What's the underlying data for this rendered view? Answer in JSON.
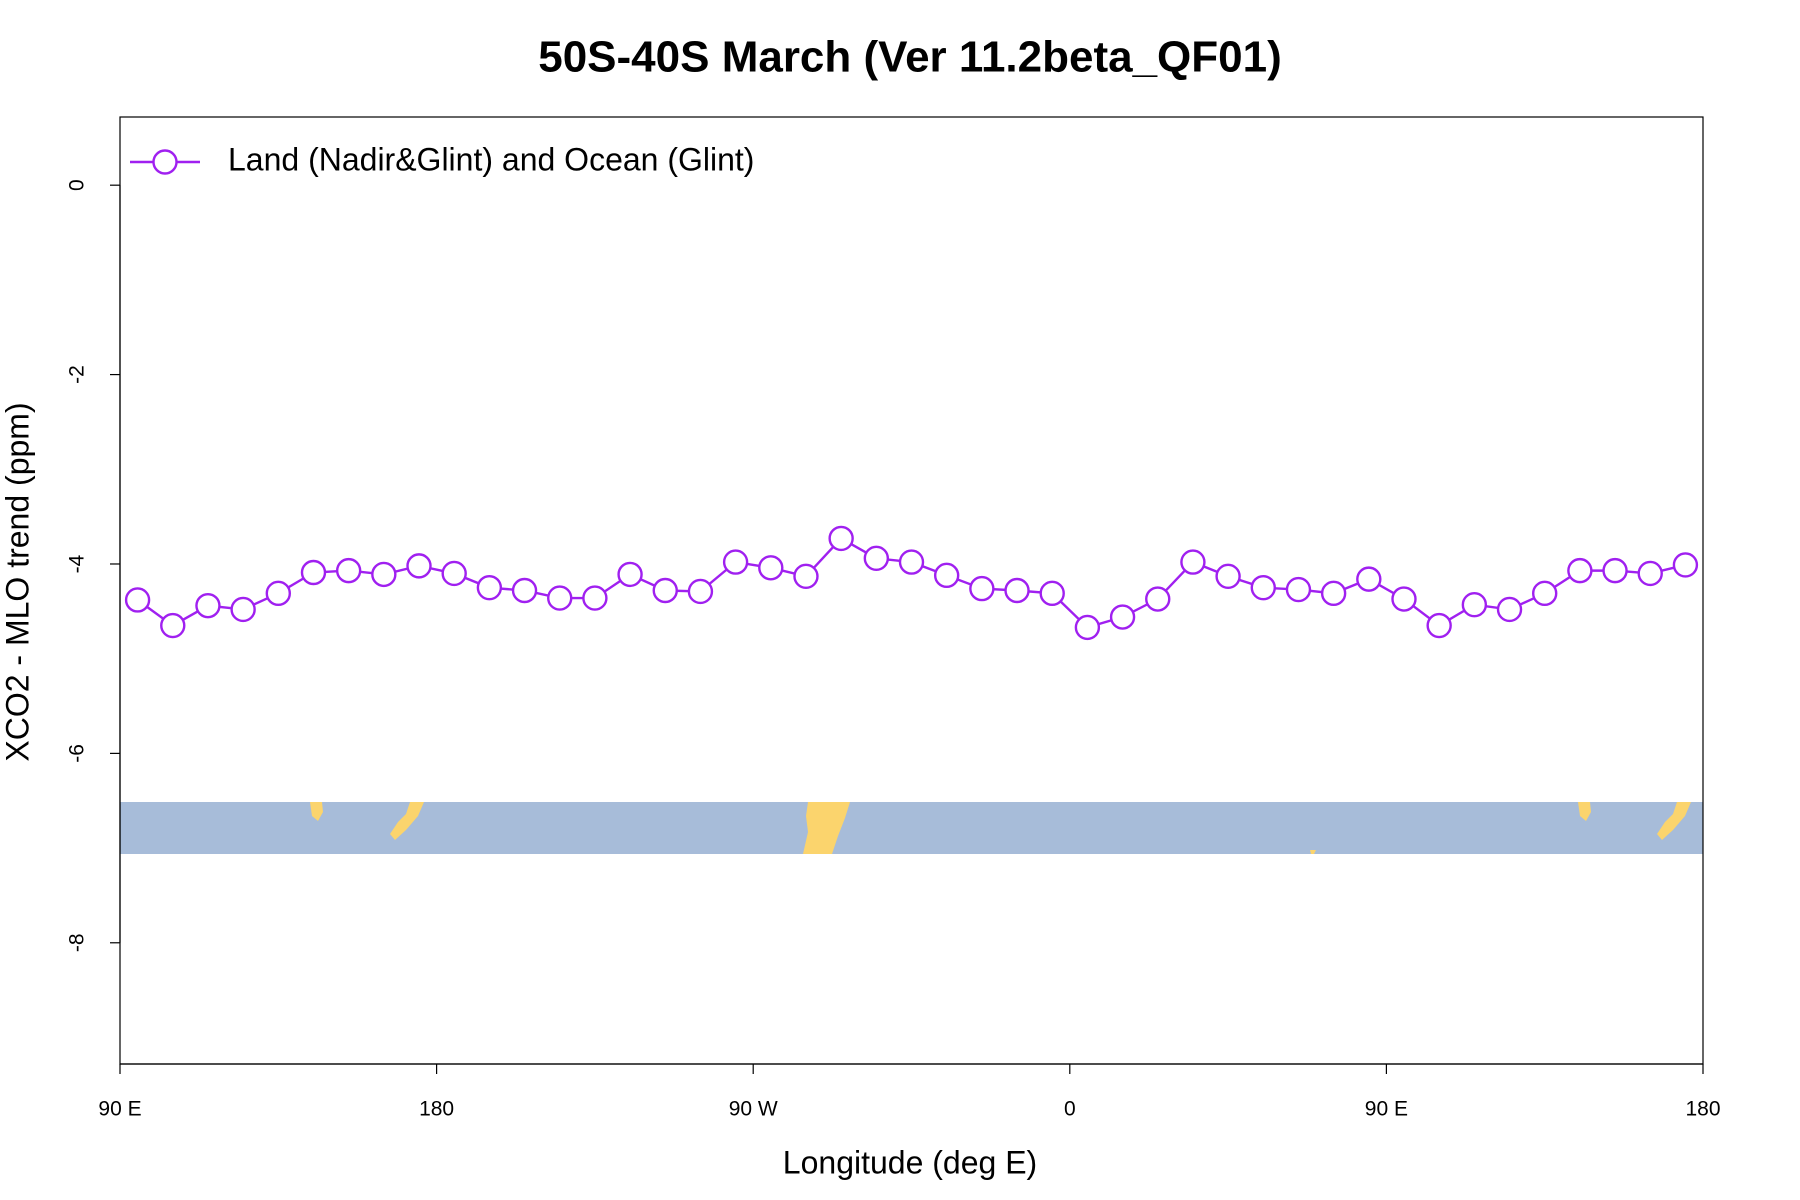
{
  "chart_data": {
    "type": "line",
    "title": "50S-40S March (Ver 11.2beta_QF01)",
    "x_label": "Longitude (deg E)",
    "y_label": "XCO2 - MLO trend (ppm)",
    "x": [
      95,
      105,
      115,
      125,
      135,
      145,
      155,
      165,
      175,
      185,
      195,
      205,
      215,
      225,
      235,
      245,
      255,
      265,
      275,
      285,
      295,
      305,
      315,
      325,
      335,
      345,
      355,
      365,
      375,
      385,
      395,
      405,
      415,
      425,
      435,
      445,
      455,
      465,
      475,
      485,
      495,
      505,
      515,
      525,
      535
    ],
    "series": [
      {
        "name": "Land (Nadir&Glint) and Ocean (Glint)",
        "color": "#a020f0",
        "values": [
          -4.38,
          -4.65,
          -4.44,
          -4.48,
          -4.31,
          -4.09,
          -4.07,
          -4.11,
          -4.02,
          -4.1,
          -4.25,
          -4.28,
          -4.36,
          -4.36,
          -4.11,
          -4.28,
          -4.29,
          -3.98,
          -4.04,
          -4.13,
          -3.73,
          -3.94,
          -3.98,
          -4.12,
          -4.26,
          -4.28,
          -4.31,
          -4.67,
          -4.56,
          -4.37,
          -3.98,
          -4.13,
          -4.25,
          -4.27,
          -4.31,
          -4.16,
          -4.37,
          -4.65,
          -4.43,
          -4.48,
          -4.31,
          -4.07,
          -4.07,
          -4.1,
          -4.01
        ]
      }
    ],
    "xlim": [
      90,
      540
    ],
    "xticks": [
      {
        "value": 90,
        "label": "90 E"
      },
      180,
      {
        "value": 270,
        "label": "90 W"
      },
      {
        "value": 360,
        "label": "0"
      },
      {
        "value": 450,
        "label": "90 E"
      },
      {
        "value": 540,
        "label": "180"
      }
    ],
    "ylim": [
      -9.28,
      0.72
    ],
    "yticks": [
      0,
      -2,
      -4,
      -6,
      -8
    ],
    "legend": "top-left"
  }
}
